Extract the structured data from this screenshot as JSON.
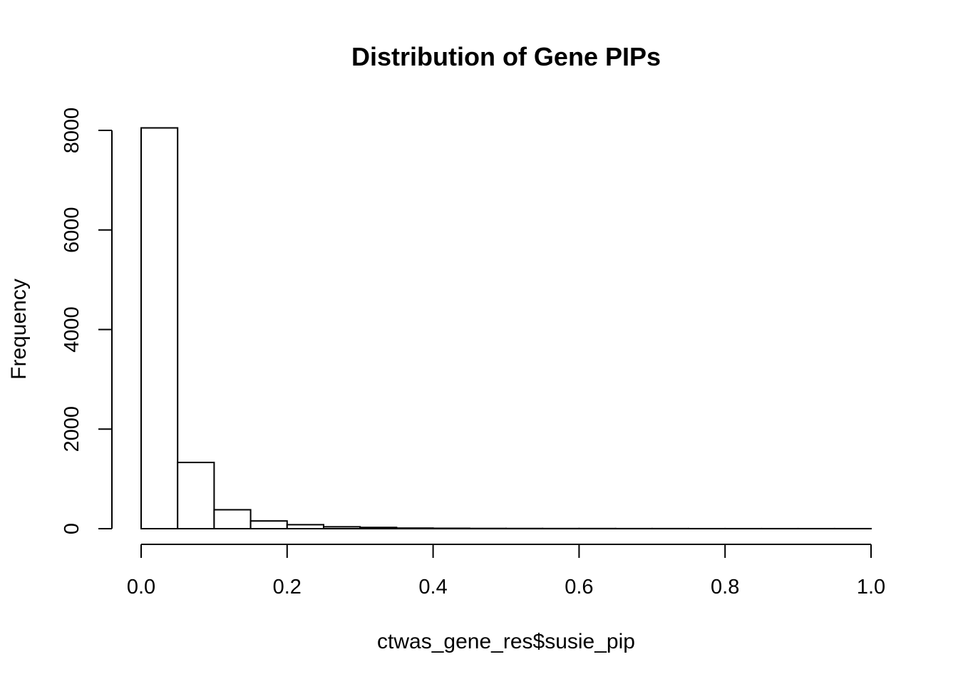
{
  "chart_data": {
    "type": "bar",
    "title": "Distribution of Gene PIPs",
    "xlabel": "ctwas_gene_res$susie_pip",
    "ylabel": "Frequency",
    "bin_edges": [
      0.0,
      0.05,
      0.1,
      0.15,
      0.2,
      0.25,
      0.3,
      0.35,
      0.4,
      0.45,
      0.5,
      0.55,
      0.6,
      0.65,
      0.7,
      0.75,
      0.8,
      0.85,
      0.9,
      0.95,
      1.0
    ],
    "values": [
      8050,
      1330,
      380,
      155,
      80,
      38,
      25,
      12,
      8,
      5,
      4,
      3,
      3,
      2,
      2,
      1,
      1,
      1,
      1,
      1
    ],
    "xlim": [
      0,
      1
    ],
    "ylim": [
      0,
      8000
    ],
    "x_ticks": [
      "0.0",
      "0.2",
      "0.4",
      "0.6",
      "0.8",
      "1.0"
    ],
    "y_ticks": [
      "0",
      "2000",
      "4000",
      "6000",
      "8000"
    ],
    "grid": false,
    "legend": "none"
  }
}
